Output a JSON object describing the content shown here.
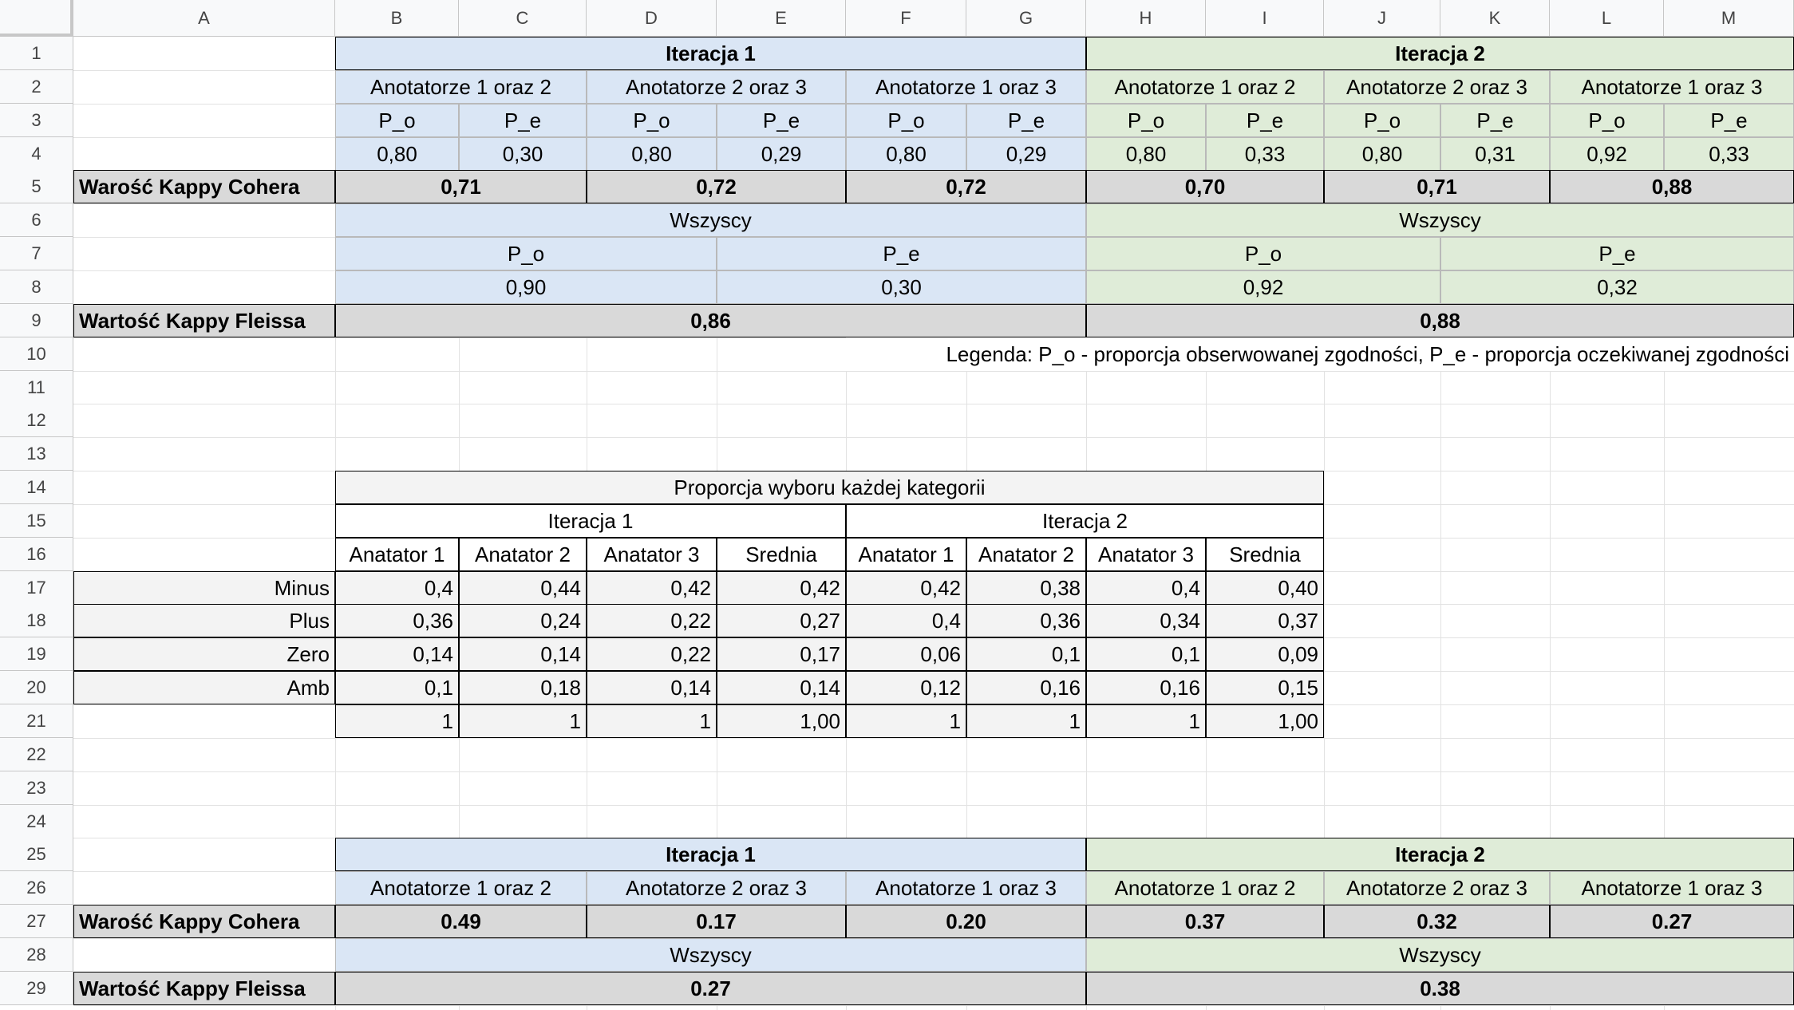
{
  "columns": [
    "A",
    "B",
    "C",
    "D",
    "E",
    "F",
    "G",
    "H",
    "I",
    "J",
    "K",
    "L",
    "M"
  ],
  "rows": [
    "1",
    "2",
    "3",
    "4",
    "5",
    "6",
    "7",
    "8",
    "9",
    "10",
    "11",
    "12",
    "13",
    "14",
    "15",
    "16",
    "17",
    "18",
    "19",
    "20",
    "21",
    "22",
    "23",
    "24",
    "25",
    "26",
    "27",
    "28",
    "29"
  ],
  "colors": {
    "iteration1": "#dae6f5",
    "iteration2": "#dfecd8",
    "kappa_row": "#d9d9d9",
    "category_row": "#f3f3f3"
  },
  "table1": {
    "iter1_title": "Iteracja 1",
    "iter2_title": "Iteracja 2",
    "pairs": [
      "Anotatorze 1 oraz 2",
      "Anotatorze 2 oraz 3",
      "Anotatorze 1 oraz 3",
      "Anotatorze 1 oraz 2",
      "Anotatorze 2 oraz 3",
      "Anotatorze 1 oraz 3"
    ],
    "po_label": "P_o",
    "pe_label": "P_e",
    "values": [
      "0,80",
      "0,30",
      "0,80",
      "0,29",
      "0,80",
      "0,29",
      "0,80",
      "0,33",
      "0,80",
      "0,31",
      "0,92",
      "0,33"
    ],
    "cohen_label": "Warość Kappy Cohera",
    "cohen": [
      "0,71",
      "0,72",
      "0,72",
      "0,70",
      "0,71",
      "0,88"
    ],
    "all_label": "Wszyscy",
    "all_po": [
      "0,90",
      "0,92"
    ],
    "all_pe": [
      "0,30",
      "0,32"
    ],
    "fleiss_label": "Wartość Kappy Fleissa",
    "fleiss": [
      "0,86",
      "0,88"
    ],
    "legend": "Legenda: P_o - proporcja obserwowanej zgodności, P_e - proporcja oczekiwanej zgodności"
  },
  "table2": {
    "title": "Proporcja wyboru każdej kategorii",
    "iter1": "Iteracja 1",
    "iter2": "Iteracja 2",
    "headers": [
      "Anatator 1",
      "Anatator 2",
      "Anatator 3",
      "Srednia",
      "Anatator 1",
      "Anatator 2",
      "Anatator 3",
      "Srednia"
    ],
    "rows": [
      {
        "label": "Minus",
        "values": [
          "0,4",
          "0,44",
          "0,42",
          "0,42",
          "0,42",
          "0,38",
          "0,4",
          "0,40"
        ]
      },
      {
        "label": "Plus",
        "values": [
          "0,36",
          "0,24",
          "0,22",
          "0,27",
          "0,4",
          "0,36",
          "0,34",
          "0,37"
        ]
      },
      {
        "label": "Zero",
        "values": [
          "0,14",
          "0,14",
          "0,22",
          "0,17",
          "0,06",
          "0,1",
          "0,1",
          "0,09"
        ]
      },
      {
        "label": "Amb",
        "values": [
          "0,1",
          "0,18",
          "0,14",
          "0,14",
          "0,12",
          "0,16",
          "0,16",
          "0,15"
        ]
      },
      {
        "label": "",
        "values": [
          "1",
          "1",
          "1",
          "1,00",
          "1",
          "1",
          "1",
          "1,00"
        ]
      }
    ]
  },
  "table3": {
    "iter1_title": "Iteracja 1",
    "iter2_title": "Iteracja 2",
    "pairs": [
      "Anotatorze 1 oraz 2",
      "Anotatorze 2 oraz 3",
      "Anotatorze 1 oraz 3",
      "Anotatorze 1 oraz 2",
      "Anotatorze 2 oraz 3",
      "Anotatorze 1 oraz 3"
    ],
    "cohen_label": "Warość Kappy Cohera",
    "cohen": [
      "0.49",
      "0.17",
      "0.20",
      "0.37",
      "0.32",
      "0.27"
    ],
    "all_label": "Wszyscy",
    "fleiss_label": "Wartość Kappy Fleissa",
    "fleiss": [
      "0.27",
      "0.38"
    ]
  }
}
